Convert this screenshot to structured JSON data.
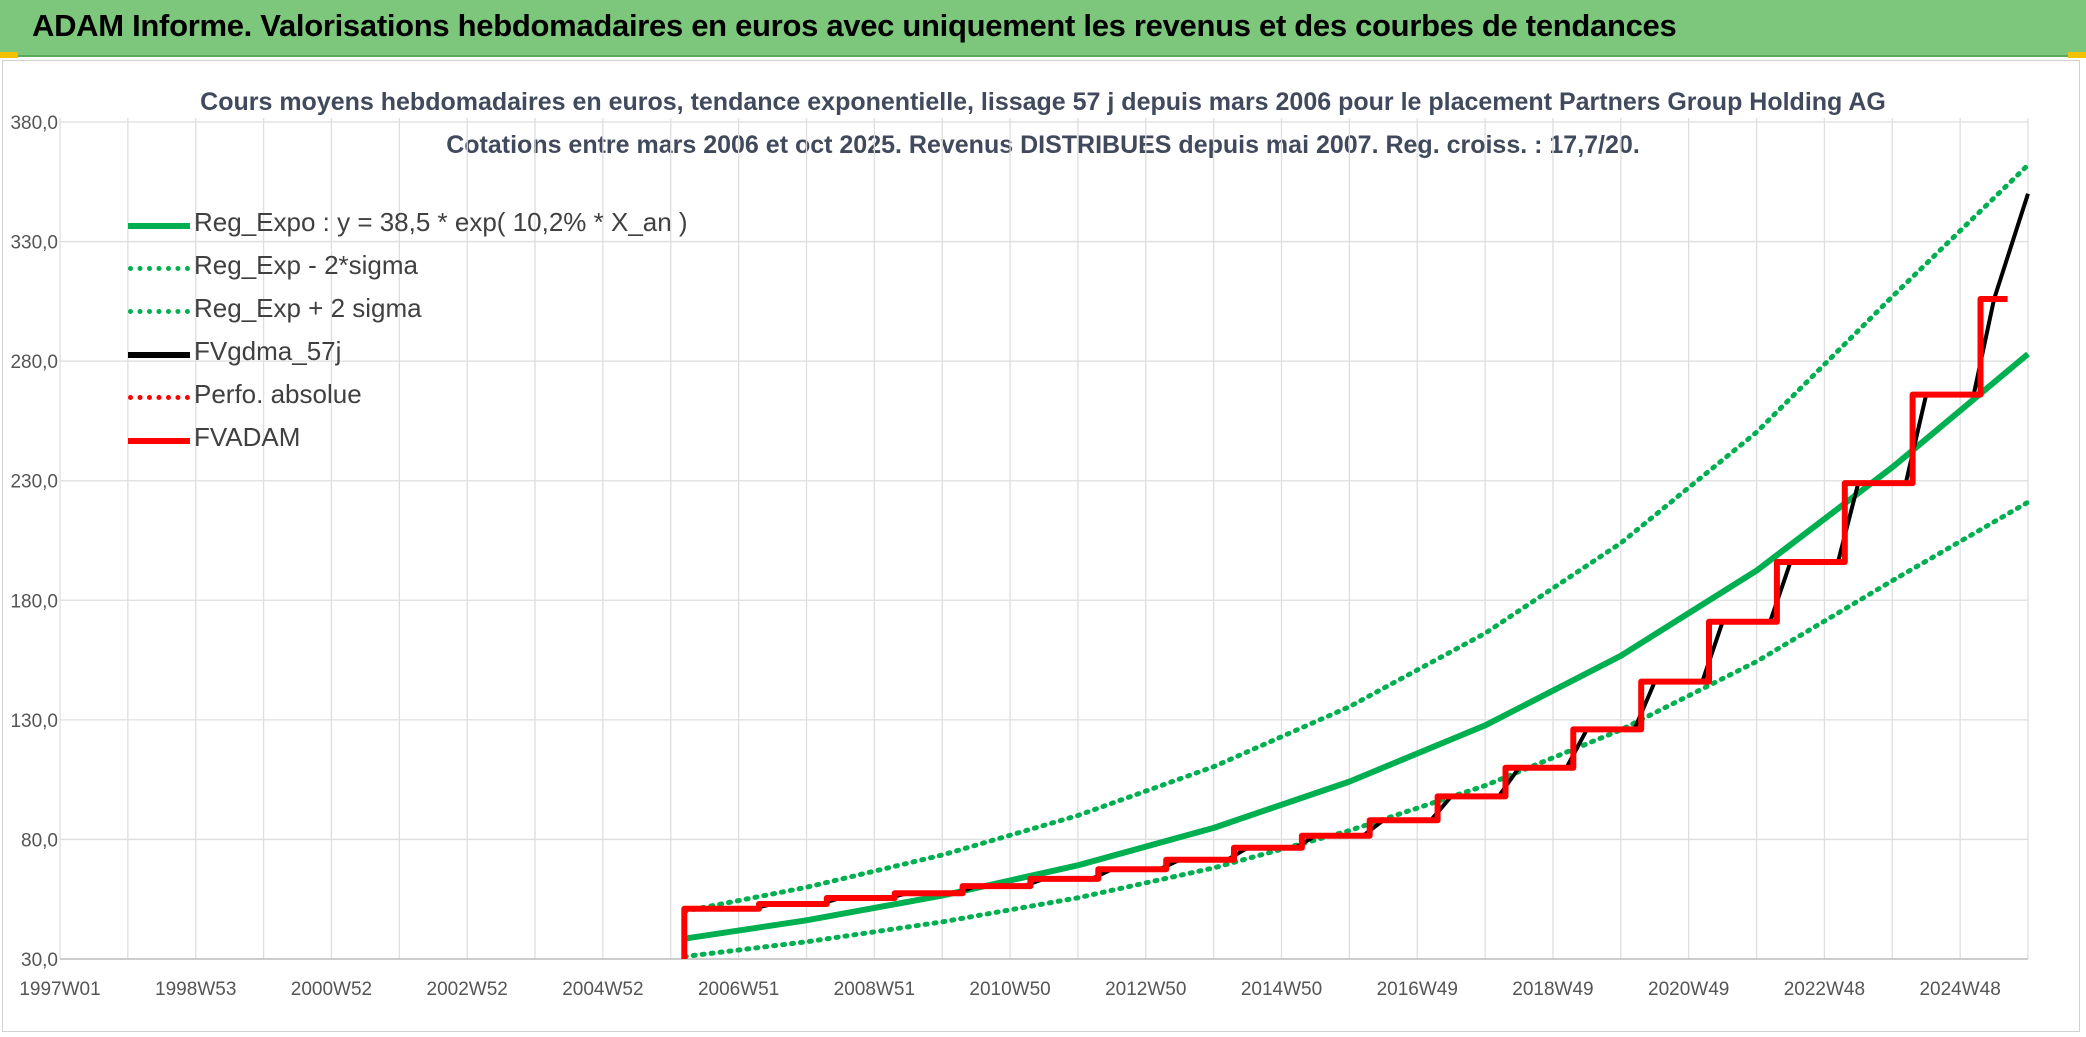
{
  "header": {
    "title": "ADAM Informe. Valorisations hebdomadaires en euros avec uniquement les revenus et des courbes de tendances"
  },
  "chart_data": {
    "type": "line",
    "title": "Cours moyens hebdomadaires en euros, tendance exponentielle, lissage 57 j depuis mars 2006 pour le placement Partners Group Holding AG",
    "subtitle": "Cotations entre mars 2006 et oct 2025. Revenus DISTRIBUES depuis mai 2007. Reg. croiss. : 17,7/20.",
    "xlabel": "",
    "ylabel": "",
    "ylim": [
      30,
      380
    ],
    "yticks": [
      "380,0",
      "330,0",
      "280,0",
      "230,0",
      "180,0",
      "130,0",
      "80,0",
      "30,0"
    ],
    "xlim": [
      1997.0,
      2026.0
    ],
    "xticks": [
      {
        "label": "1997W01",
        "x": 1997.0
      },
      {
        "label": "1998W53",
        "x": 1999.0
      },
      {
        "label": "2000W52",
        "x": 2001.0
      },
      {
        "label": "2002W52",
        "x": 2003.0
      },
      {
        "label": "2004W52",
        "x": 2005.0
      },
      {
        "label": "2006W51",
        "x": 2007.0
      },
      {
        "label": "2008W51",
        "x": 2009.0
      },
      {
        "label": "2010W50",
        "x": 2011.0
      },
      {
        "label": "2012W50",
        "x": 2013.0
      },
      {
        "label": "2014W50",
        "x": 2015.0
      },
      {
        "label": "2016W49",
        "x": 2017.0
      },
      {
        "label": "2018W49",
        "x": 2019.0
      },
      {
        "label": "2020W49",
        "x": 2021.0
      },
      {
        "label": "2022W48",
        "x": 2023.0
      },
      {
        "label": "2024W48",
        "x": 2025.0
      }
    ],
    "grid": true,
    "legend_position": "top-left",
    "series": [
      {
        "name": "Reg_Expo : y = 38,5 * exp( 10,2% *  X_an )",
        "color": "#00b050",
        "style": "solid",
        "x": [
          2006.2,
          2008.0,
          2010.0,
          2012.0,
          2014.0,
          2016.0,
          2018.0,
          2020.0,
          2022.0,
          2024.0,
          2026.0
        ],
        "y": [
          38.5,
          46.2,
          56.5,
          69.2,
          84.8,
          104.2,
          127.7,
          156.8,
          192.4,
          235.6,
          283.0
        ]
      },
      {
        "name": "Reg_Exp - 2*sigma",
        "color": "#00b050",
        "style": "dotted",
        "x": [
          2006.2,
          2008.0,
          2010.0,
          2012.0,
          2014.0,
          2016.0,
          2018.0,
          2020.0,
          2022.0,
          2024.0,
          2026.0
        ],
        "y": [
          31.0,
          37.2,
          45.5,
          55.6,
          68.1,
          83.7,
          102.5,
          125.8,
          154.4,
          188.2,
          221.0
        ]
      },
      {
        "name": "Reg_Exp + 2 sigma",
        "color": "#00b050",
        "style": "dotted",
        "x": [
          2006.2,
          2008.0,
          2010.0,
          2012.0,
          2014.0,
          2016.0,
          2018.0,
          2020.0,
          2022.0,
          2024.0,
          2026.0
        ],
        "y": [
          50.0,
          60.0,
          73.5,
          90.0,
          110.4,
          135.5,
          166.2,
          203.9,
          250.3,
          307.0,
          362.0
        ]
      },
      {
        "name": "FVgdma_57j",
        "color": "#000000",
        "style": "solid",
        "x": [
          2006.2,
          2007.2,
          2007.5,
          2008.2,
          2008.5,
          2009.2,
          2009.5,
          2010.2,
          2010.5,
          2011.2,
          2011.5,
          2012.2,
          2012.5,
          2013.2,
          2013.5,
          2014.2,
          2014.5,
          2015.2,
          2015.5,
          2016.2,
          2016.5,
          2017.2,
          2017.5,
          2018.2,
          2018.5,
          2019.2,
          2019.5,
          2020.2,
          2020.5,
          2021.2,
          2021.5,
          2022.2,
          2022.5,
          2023.2,
          2023.5,
          2024.2,
          2024.5,
          2025.2,
          2025.5,
          2026.0
        ],
        "y": [
          51.0,
          51.0,
          53.0,
          53.0,
          55.5,
          55.5,
          57.5,
          57.5,
          60.5,
          60.5,
          63.5,
          63.5,
          67.5,
          67.5,
          71.5,
          71.5,
          76.5,
          76.5,
          81.5,
          81.5,
          88.0,
          88.0,
          98.0,
          98.0,
          110.0,
          110.0,
          126.0,
          126.0,
          146.0,
          146.0,
          171.0,
          171.0,
          196.0,
          196.0,
          229.0,
          229.0,
          266.0,
          266.0,
          306.0,
          350.0
        ]
      },
      {
        "name": "Perfo. absolue",
        "color": "#ff0000",
        "style": "dotted",
        "x": [],
        "y": []
      },
      {
        "name": "FVADAM",
        "color": "#ff0000",
        "style": "solid",
        "x": [
          2006.2,
          2006.2,
          2007.3,
          2007.3,
          2008.3,
          2008.3,
          2009.3,
          2009.3,
          2010.3,
          2010.3,
          2011.3,
          2011.3,
          2012.3,
          2012.3,
          2013.3,
          2013.3,
          2014.3,
          2014.3,
          2015.3,
          2015.3,
          2016.3,
          2016.3,
          2017.3,
          2017.3,
          2018.3,
          2018.3,
          2019.3,
          2019.3,
          2020.3,
          2020.3,
          2021.3,
          2021.3,
          2022.3,
          2022.3,
          2023.3,
          2023.3,
          2024.3,
          2024.3,
          2025.3,
          2025.3,
          2025.7
        ],
        "y": [
          30.0,
          51.0,
          51.0,
          53.0,
          53.0,
          55.5,
          55.5,
          57.5,
          57.5,
          60.5,
          60.5,
          63.5,
          63.5,
          67.5,
          67.5,
          71.5,
          71.5,
          76.5,
          76.5,
          81.5,
          81.5,
          88.0,
          88.0,
          98.0,
          98.0,
          110.0,
          110.0,
          126.0,
          126.0,
          146.0,
          146.0,
          171.0,
          171.0,
          196.0,
          196.0,
          229.0,
          229.0,
          266.0,
          266.0,
          306.0,
          306.0
        ]
      }
    ]
  }
}
